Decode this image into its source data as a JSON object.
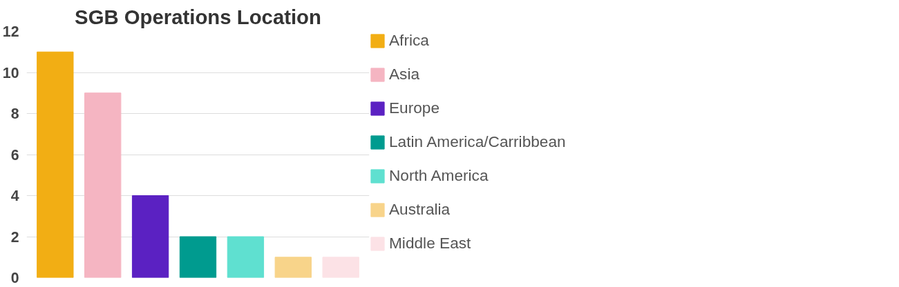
{
  "chart_data": {
    "type": "bar",
    "title": "SGB Operations Location",
    "categories": [
      null,
      null,
      null,
      null,
      null,
      null,
      null
    ],
    "series": [
      {
        "name": "Africa",
        "color": "#f2ae14",
        "values": [
          11,
          null,
          null,
          null,
          null,
          null,
          null
        ]
      },
      {
        "name": "Asia",
        "color": "#f5b5c2",
        "values": [
          null,
          9,
          null,
          null,
          null,
          null,
          null
        ]
      },
      {
        "name": "Europe",
        "color": "#5b21c2",
        "values": [
          null,
          null,
          4,
          null,
          null,
          null,
          null
        ]
      },
      {
        "name": "Latin America/Carribbean",
        "color": "#009b8f",
        "values": [
          null,
          null,
          null,
          2,
          null,
          null,
          null
        ]
      },
      {
        "name": "North America",
        "color": "#5fe0d0",
        "values": [
          null,
          null,
          null,
          null,
          2,
          null,
          null
        ]
      },
      {
        "name": "Australia",
        "color": "#f8d48a",
        "values": [
          null,
          null,
          null,
          null,
          null,
          1,
          null
        ]
      },
      {
        "name": "Middle East",
        "color": "#fce2e6",
        "values": [
          null,
          null,
          null,
          null,
          null,
          null,
          1
        ]
      }
    ],
    "ylim": [
      0,
      12
    ],
    "yticks": [
      0,
      2,
      4,
      6,
      8,
      10,
      12
    ],
    "grid": "y",
    "legend": "right"
  }
}
